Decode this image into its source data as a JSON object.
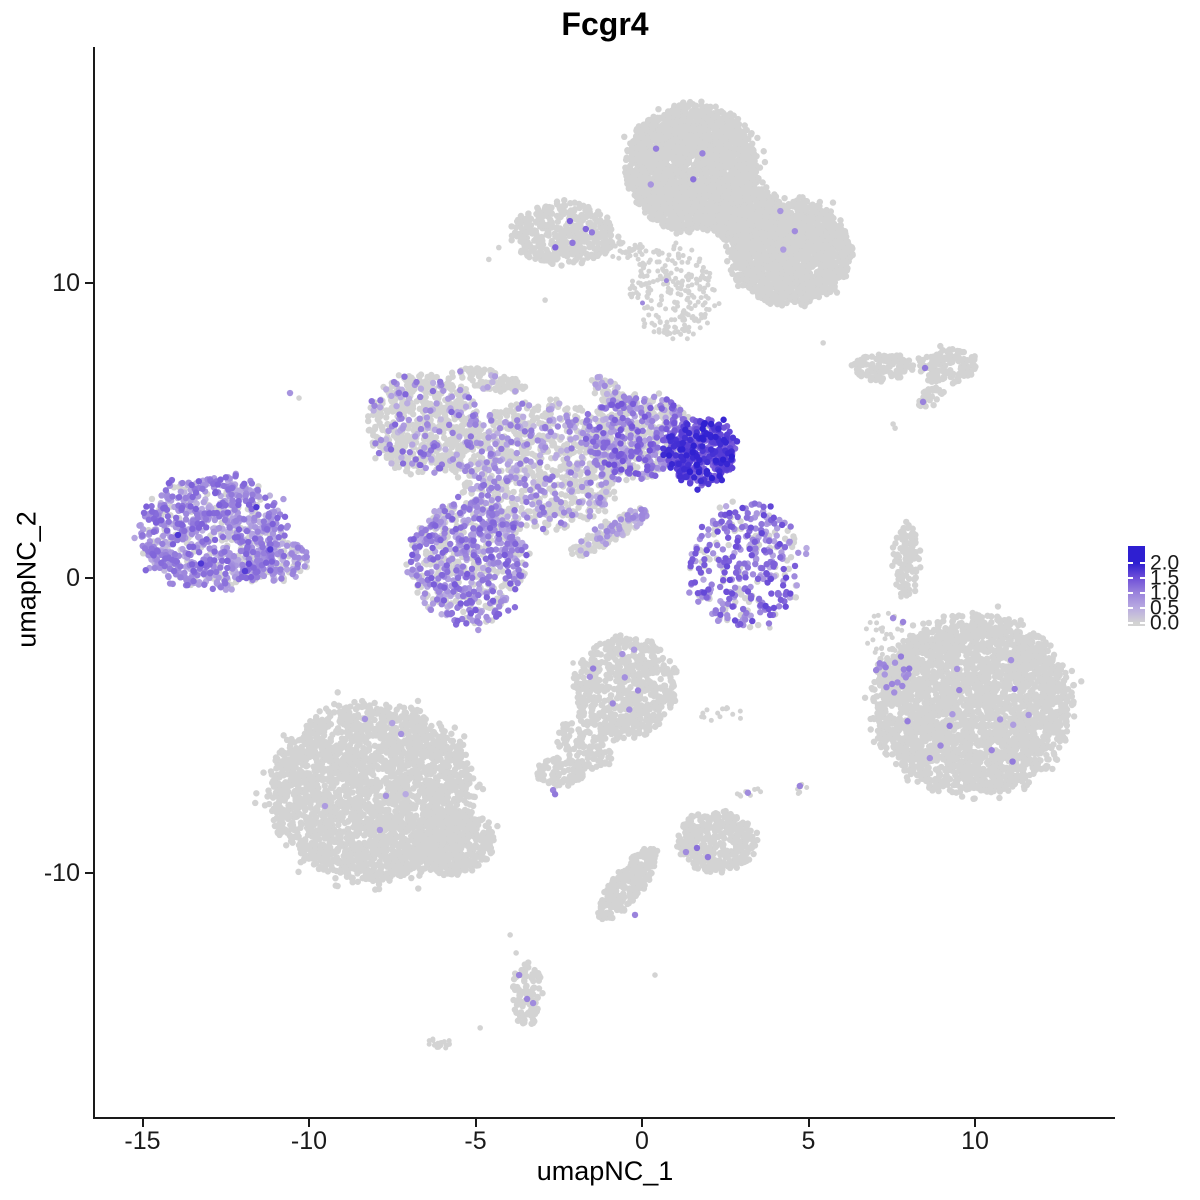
{
  "title": "Fcgr4",
  "axes": {
    "x": {
      "label": "umapNC_1",
      "ticks": [
        "-15",
        "-10",
        "-5",
        "0",
        "5",
        "10"
      ],
      "tick_values": [
        -15,
        -10,
        -5,
        0,
        5,
        10
      ]
    },
    "y": {
      "label": "umapNC_2",
      "ticks": [
        "10",
        "0",
        "-10"
      ],
      "tick_values": [
        10,
        0,
        -10
      ]
    }
  },
  "legend": {
    "labels": [
      "2.0",
      "1.5",
      "1.0",
      "0.5",
      "0.0"
    ],
    "values": [
      2,
      1.5,
      1,
      0.5,
      0
    ]
  },
  "colors": {
    "background": "#ffffff",
    "axis": "#1a1a1a",
    "text": "#000000",
    "grey_point": "#d3d3d3",
    "max_point": "#2e1fd1"
  },
  "chart_data": {
    "type": "scatter",
    "title": "Fcgr4",
    "xlabel": "umapNC_1",
    "ylabel": "umapNC_2",
    "xlim": [
      -16.4,
      14.2
    ],
    "ylim": [
      -18.3,
      18.0
    ],
    "legend_range": [
      0,
      2
    ],
    "grid": false,
    "legend_position": "right",
    "color_scale": {
      "stops": [
        [
          0,
          "#d3d3d3"
        ],
        [
          0.5,
          "#b9abe1"
        ],
        [
          1,
          "#9a83dc"
        ],
        [
          1.5,
          "#6f50d8"
        ],
        [
          2,
          "#2e1fd1"
        ]
      ]
    },
    "clusters": [
      {
        "name": "top-core",
        "cx": 1.53,
        "cy": 13.9,
        "rx": 1.98,
        "ry": 2.1,
        "n": 2400,
        "fc": 0,
        "accents": {
          "n": 4,
          "lo": 0.7,
          "hi": 1.2
        }
      },
      {
        "name": "top-right-lobe",
        "cx": 4.44,
        "cy": 11.05,
        "rx": 1.8,
        "ry": 1.76,
        "n": 1700,
        "fc": 0,
        "accents": {
          "n": 3,
          "lo": 0.6,
          "hi": 1.0
        }
      },
      {
        "name": "top-bridge",
        "cx": 3.0,
        "cy": 12.4,
        "rx": 1.1,
        "ry": 1.0,
        "n": 700,
        "fc": 0
      },
      {
        "name": "top-stem-spray",
        "cx": 0.9,
        "cy": 9.69,
        "rx": 1.26,
        "ry": 1.63,
        "n": 230,
        "fc": 0,
        "r": 2.5,
        "accents": {
          "n": 2,
          "lo": 0.7,
          "hi": 1.0
        }
      },
      {
        "name": "top-left-small",
        "cx": -2.31,
        "cy": 11.69,
        "rx": 1.56,
        "ry": 1.02,
        "n": 400,
        "fc": 0,
        "accents": {
          "n": 5,
          "lo": 0.9,
          "hi": 1.4
        }
      },
      {
        "name": "top-left-trail",
        "cx": -0.66,
        "cy": 11.12,
        "rx": 0.8,
        "ry": 0.3,
        "n": 40,
        "fc": 0,
        "r": 2.5
      },
      {
        "name": "left-oval",
        "cx": -12.88,
        "cy": 1.53,
        "rx": 2.16,
        "ry": 1.93,
        "n": 850,
        "fc": 0.78,
        "lo": 0.35,
        "hi": 1.35,
        "accents": {
          "n": 6,
          "lo": 1.5,
          "hi": 1.9
        }
      },
      {
        "name": "left-oval-tail",
        "cx": -11.02,
        "cy": 0.61,
        "rx": 0.95,
        "ry": 0.75,
        "n": 130,
        "fc": 0.7,
        "lo": 0.3,
        "hi": 1.1
      },
      {
        "name": "nw-lobe",
        "cx": -6.55,
        "cy": 5.22,
        "rx": 1.68,
        "ry": 1.69,
        "n": 650,
        "fc": 0.22,
        "lo": 0.3,
        "hi": 1.3
      },
      {
        "name": "nw-arm",
        "cx": -4.5,
        "cy": 6.68,
        "rx": 1.05,
        "ry": 0.34,
        "rot": -15,
        "n": 90,
        "fc": 0.12,
        "lo": 0.3,
        "hi": 0.9
      },
      {
        "name": "central-bridge",
        "cx": -3.06,
        "cy": 3.83,
        "rx": 2.55,
        "ry": 2.1,
        "n": 1000,
        "fc": 0.3,
        "lo": 0.3,
        "hi": 1.2
      },
      {
        "name": "bridge-n-arm",
        "cx": -0.9,
        "cy": 6.2,
        "rx": 0.9,
        "ry": 0.34,
        "rot": -45,
        "n": 80,
        "fc": 0.2,
        "lo": 0.3,
        "hi": 1.0
      },
      {
        "name": "se-arm",
        "cx": -0.96,
        "cy": 1.56,
        "rx": 1.35,
        "ry": 0.34,
        "rot": 33,
        "n": 150,
        "fc": 0.3,
        "lo": 0.3,
        "hi": 1.0
      },
      {
        "name": "ne-arm",
        "cx": -0.06,
        "cy": 4.81,
        "rx": 1.56,
        "ry": 1.42,
        "n": 520,
        "fc": 0.55,
        "lo": 0.4,
        "hi": 1.5
      },
      {
        "name": "dense-blob",
        "cx": 1.74,
        "cy": 4.31,
        "rx": 1.08,
        "ry": 1.12,
        "n": 400,
        "fc": 0.97,
        "lo": 1.1,
        "hi": 2.0
      },
      {
        "name": "sw-bowl",
        "cx": -5.23,
        "cy": 0.61,
        "rx": 1.74,
        "ry": 2.1,
        "n": 750,
        "fc": 0.6,
        "lo": 0.4,
        "hi": 1.4
      },
      {
        "name": "right-mid",
        "cx": 3.09,
        "cy": 0.44,
        "rx": 1.65,
        "ry": 2.1,
        "n": 360,
        "fc": 0.72,
        "lo": 0.5,
        "hi": 1.6
      },
      {
        "name": "thin-crescent",
        "cx": 7.93,
        "cy": 0.61,
        "rx": 0.42,
        "ry": 1.29,
        "n": 110,
        "fc": 0
      },
      {
        "name": "bottom-right-big",
        "cx": 9.94,
        "cy": -4.34,
        "rx": 2.91,
        "ry": 2.98,
        "n": 3000,
        "fc": 0,
        "accents": {
          "n": 15,
          "lo": 0.6,
          "hi": 1.1
        }
      },
      {
        "name": "br-left-edge",
        "cx": 7.54,
        "cy": -3.19,
        "rx": 0.5,
        "ry": 0.6,
        "n": 50,
        "fc": 0.3,
        "lo": 0.7,
        "hi": 1.2
      },
      {
        "name": "br-spray",
        "cx": 7.3,
        "cy": -2.1,
        "rx": 0.6,
        "ry": 1.0,
        "n": 28,
        "fc": 0,
        "r": 2.5
      },
      {
        "name": "bottom-left-big",
        "cx": -8.11,
        "cy": -7.29,
        "rx": 3.0,
        "ry": 2.98,
        "n": 2700,
        "fc": 0,
        "accents": {
          "n": 4,
          "lo": 0.5,
          "hi": 0.9
        }
      },
      {
        "name": "bl-tail",
        "cx": -5.62,
        "cy": -9.05,
        "rx": 1.2,
        "ry": 0.95,
        "rot": 25,
        "n": 450,
        "fc": 0
      },
      {
        "name": "center-bottom",
        "cx": -0.51,
        "cy": -3.73,
        "rx": 1.56,
        "ry": 1.69,
        "n": 650,
        "fc": 0,
        "accents": {
          "n": 8,
          "lo": 0.7,
          "hi": 1.1
        }
      },
      {
        "name": "cb-tail",
        "cx": -1.71,
        "cy": -5.66,
        "rx": 0.66,
        "ry": 0.95,
        "rot": 40,
        "n": 110,
        "fc": 0
      },
      {
        "name": "cb-hammer",
        "cx": -2.46,
        "cy": -6.58,
        "rx": 0.72,
        "ry": 0.47,
        "n": 85,
        "fc": 0
      },
      {
        "name": "se-island",
        "cx": 2.22,
        "cy": -8.92,
        "rx": 1.2,
        "ry": 1.02,
        "n": 380,
        "fc": 0
      },
      {
        "name": "chain",
        "cx": -0.42,
        "cy": -10.37,
        "rx": 1.44,
        "ry": 0.47,
        "rot": 57,
        "n": 260,
        "fc": 0
      },
      {
        "name": "mini-dots",
        "cx": 2.4,
        "cy": -4.64,
        "rx": 0.66,
        "ry": 0.27,
        "n": 14,
        "fc": 0,
        "r": 2.5
      },
      {
        "name": "pair-dots",
        "cx": 3.18,
        "cy": -7.22,
        "rx": 0.36,
        "ry": 0.27,
        "n": 8,
        "fc": 0,
        "r": 2.5
      },
      {
        "name": "s-dots",
        "cx": 4.74,
        "cy": -7.1,
        "rx": 0.3,
        "ry": 0.25,
        "n": 6,
        "fc": 0,
        "r": 2.5
      },
      {
        "name": "tail-blob",
        "cx": -3.45,
        "cy": -14.14,
        "rx": 0.45,
        "ry": 1.08,
        "n": 100,
        "fc": 0
      },
      {
        "name": "tail-mini",
        "cx": -6.07,
        "cy": -15.76,
        "rx": 0.36,
        "ry": 0.24,
        "n": 20,
        "fc": 0,
        "r": 2.5
      },
      {
        "name": "streak-a",
        "cx": 7.21,
        "cy": 7.15,
        "rx": 0.9,
        "ry": 0.47,
        "n": 120,
        "fc": 0
      },
      {
        "name": "streak-b",
        "cx": 9.16,
        "cy": 7.19,
        "rx": 0.9,
        "ry": 0.61,
        "n": 150,
        "fc": 0
      },
      {
        "name": "streak-c",
        "cx": 8.68,
        "cy": 6.14,
        "rx": 0.48,
        "ry": 0.27,
        "rot": 40,
        "n": 32,
        "fc": 0
      }
    ],
    "extra_points": [
      {
        "x": 7.84,
        "y": -1.49,
        "v": 1.0
      },
      {
        "x": 7.54,
        "y": -1.36,
        "v": 0.9
      },
      {
        "x": -10.57,
        "y": 6.27,
        "v": 0.8
      },
      {
        "x": 8.5,
        "y": 7.12,
        "v": 1.1
      },
      {
        "x": 8.44,
        "y": 5.97,
        "v": 1.0
      },
      {
        "x": -0.21,
        "y": -11.42,
        "v": 1.0
      },
      {
        "x": 1.65,
        "y": -9.15,
        "v": 1.2
      },
      {
        "x": 1.98,
        "y": -9.46,
        "v": 1.1
      },
      {
        "x": 1.32,
        "y": -9.29,
        "v": 0.9
      },
      {
        "x": -2.67,
        "y": -7.19,
        "v": 1.0
      },
      {
        "x": -2.61,
        "y": -7.33,
        "v": 1.1
      },
      {
        "x": -3.69,
        "y": -13.46,
        "v": 1.0
      },
      {
        "x": -3.45,
        "y": -14.27,
        "v": 1.0
      },
      {
        "x": -3.27,
        "y": -14.41,
        "v": 0.9
      },
      {
        "x": 3.18,
        "y": -7.28,
        "v": 0.9
      },
      {
        "x": 4.74,
        "y": -7.05,
        "v": 1.0
      },
      {
        "x": -8.32,
        "y": -4.78,
        "v": 0.8
      },
      {
        "x": -9.52,
        "y": -7.73,
        "v": 0.7
      },
      {
        "x": -7.87,
        "y": -8.54,
        "v": 0.7
      },
      {
        "x": -2.91,
        "y": 9.42,
        "v": 0
      },
      {
        "x": -2.07,
        "y": -2.88,
        "v": 0
      },
      {
        "x": 0.39,
        "y": -13.46,
        "v": 0
      },
      {
        "x": -3.96,
        "y": -12.1,
        "v": 0
      },
      {
        "x": -3.78,
        "y": -12.71,
        "v": 0
      },
      {
        "x": -4.86,
        "y": -15.25,
        "v": 0
      },
      {
        "x": 7.54,
        "y": 5.22,
        "v": 0
      },
      {
        "x": 7.6,
        "y": 5.08,
        "v": 0
      },
      {
        "x": 5.44,
        "y": 7.97,
        "v": 0
      },
      {
        "x": 3.84,
        "y": -1.69,
        "v": 0
      },
      {
        "x": 7.78,
        "y": -0.64,
        "v": 0
      },
      {
        "x": -10.3,
        "y": 6.1,
        "v": 0
      },
      {
        "x": -4.3,
        "y": 11.2,
        "v": 0
      },
      {
        "x": -4.6,
        "y": 10.8,
        "v": 0
      }
    ]
  }
}
